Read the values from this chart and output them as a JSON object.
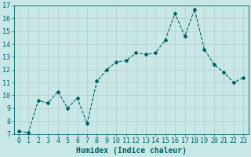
{
  "x": [
    0,
    1,
    2,
    3,
    4,
    5,
    6,
    7,
    8,
    9,
    10,
    11,
    12,
    13,
    14,
    15,
    16,
    17,
    18,
    19,
    20,
    21,
    22,
    23
  ],
  "y": [
    7.2,
    7.1,
    9.6,
    9.4,
    10.3,
    9.0,
    9.8,
    7.8,
    11.1,
    12.0,
    12.6,
    12.7,
    13.3,
    13.2,
    13.3,
    14.3,
    16.4,
    14.6,
    16.7,
    13.6,
    12.4,
    11.8,
    11.0,
    11.4
  ],
  "line_color": "#006060",
  "marker": "D",
  "marker_size": 2.0,
  "bg_color": "#c8e8e8",
  "grid_color": "#b8c8c8",
  "xlabel": "Humidex (Indice chaleur)",
  "xlim": [
    -0.5,
    23.5
  ],
  "ylim": [
    7,
    17
  ],
  "yticks": [
    7,
    8,
    9,
    10,
    11,
    12,
    13,
    14,
    15,
    16,
    17
  ],
  "xticks": [
    0,
    1,
    2,
    3,
    4,
    5,
    6,
    7,
    8,
    9,
    10,
    11,
    12,
    13,
    14,
    15,
    16,
    17,
    18,
    19,
    20,
    21,
    22,
    23
  ],
  "fontsize_label": 7,
  "fontsize_tick": 6
}
